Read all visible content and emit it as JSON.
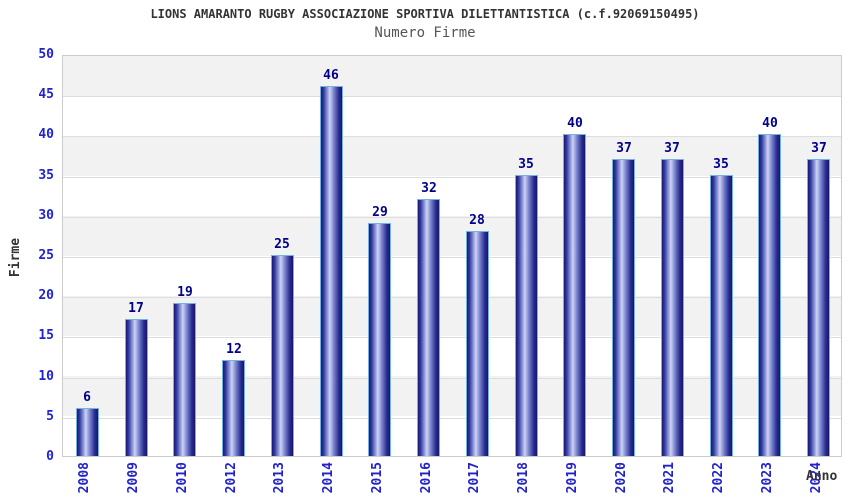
{
  "header": {
    "title": "LIONS AMARANTO RUGBY ASSOCIAZIONE SPORTIVA DILETTANTISTICA (c.f.92069150495)",
    "subtitle": "Numero Firme"
  },
  "chart_data": {
    "type": "bar",
    "title": "LIONS AMARANTO RUGBY ASSOCIAZIONE SPORTIVA DILETTANTISTICA (c.f.92069150495)",
    "subtitle": "Numero Firme",
    "categories": [
      "2008",
      "2009",
      "2010",
      "2012",
      "2013",
      "2014",
      "2015",
      "2016",
      "2017",
      "2018",
      "2019",
      "2020",
      "2021",
      "2022",
      "2023",
      "2024"
    ],
    "values": [
      6,
      17,
      19,
      12,
      25,
      46,
      29,
      32,
      28,
      35,
      40,
      37,
      37,
      35,
      40,
      37
    ],
    "xlabel": "Anno",
    "ylabel": "Firme",
    "ylim": [
      0,
      50
    ],
    "yticks": [
      0,
      5,
      10,
      15,
      20,
      25,
      30,
      35,
      40,
      45,
      50
    ],
    "grid": "horizontal-bands",
    "legend": "none"
  },
  "colors": {
    "bar_dark": "#191975",
    "bar_light": "#cdd3f3",
    "bar_border": "#74b2e0",
    "value_label": "#00008b",
    "tick_label": "#2222cc",
    "band_gray": "#f2f2f2",
    "band_white": "#ffffff",
    "plot_border": "#cccccc",
    "title_color": "#333333",
    "subtitle_color": "#555555"
  }
}
